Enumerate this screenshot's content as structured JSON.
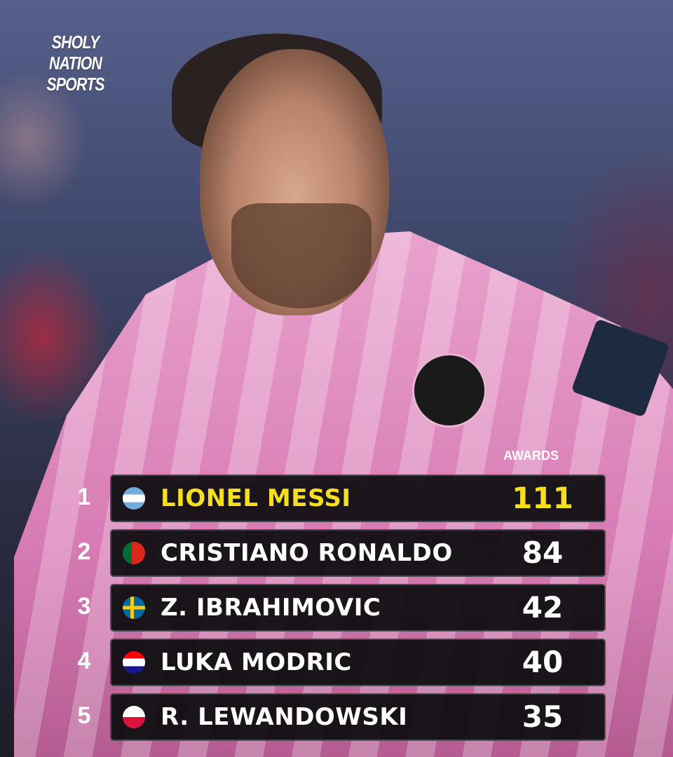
{
  "brand": {
    "line1": "SHOLY NATION",
    "line2": "SPORTS"
  },
  "column_header": "AWARDS",
  "highlight_color": "#f5df1e",
  "rows": [
    {
      "rank": "1",
      "name": "LIONEL MESSI",
      "value": "111",
      "flag": "argentina-flag"
    },
    {
      "rank": "2",
      "name": "CRISTIANO RONALDO",
      "value": "84",
      "flag": "portugal-flag"
    },
    {
      "rank": "3",
      "name": "Z. IBRAHIMOVIC",
      "value": "42",
      "flag": "sweden-flag"
    },
    {
      "rank": "4",
      "name": "LUKA MODRIC",
      "value": "40",
      "flag": "croatia-flag"
    },
    {
      "rank": "5",
      "name": "R. LEWANDOWSKI",
      "value": "35",
      "flag": "poland-flag"
    }
  ]
}
